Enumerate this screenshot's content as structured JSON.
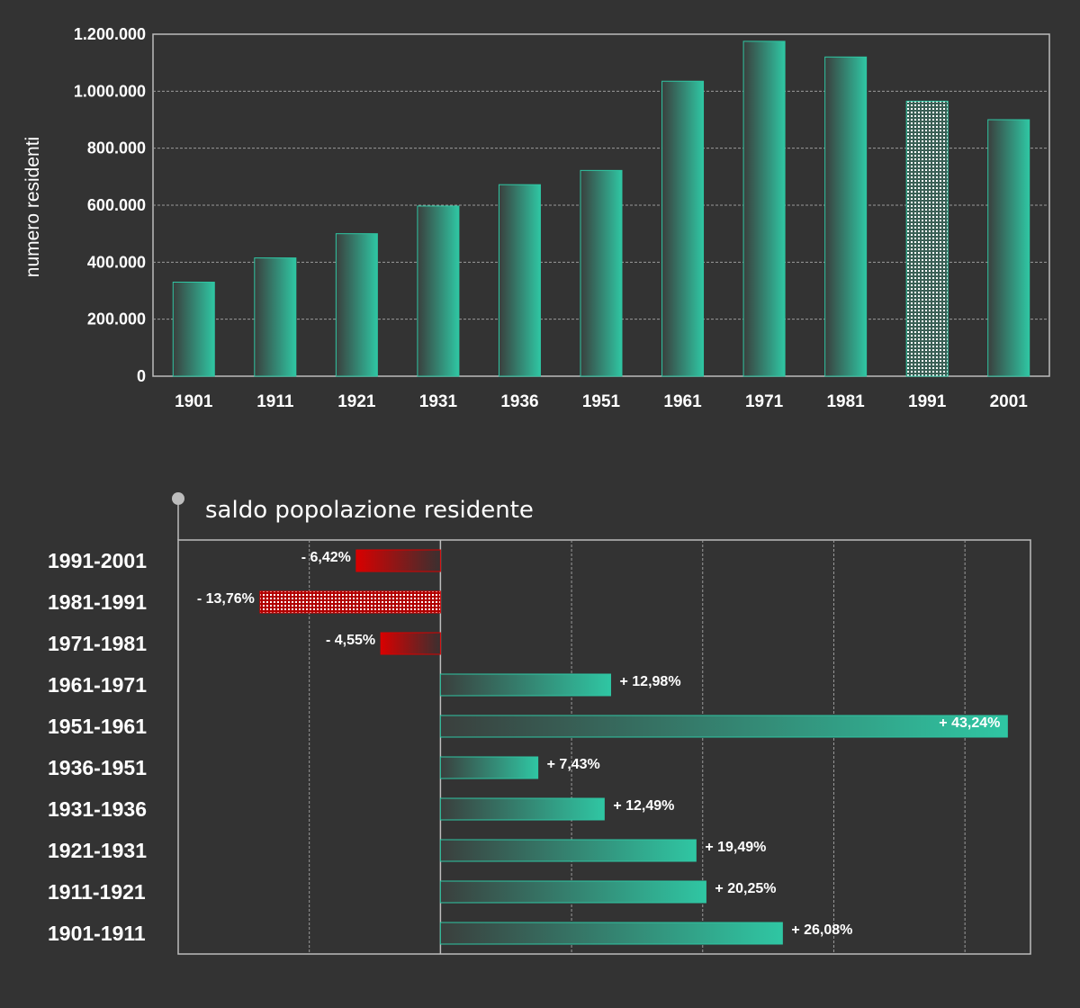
{
  "chart_data": [
    {
      "type": "bar",
      "title": "",
      "xlabel": "",
      "ylabel": "numero residenti",
      "categories": [
        "1901",
        "1911",
        "1921",
        "1931",
        "1936",
        "1951",
        "1961",
        "1971",
        "1981",
        "1991",
        "2001"
      ],
      "values": [
        330000,
        415000,
        500000,
        597000,
        672000,
        722000,
        1035000,
        1175000,
        1120000,
        965000,
        900000
      ],
      "highlighted_category": "1991",
      "ylim": [
        0,
        1200000
      ],
      "yticks": [
        0,
        200000,
        400000,
        600000,
        800000,
        1000000,
        1200000
      ],
      "ytick_labels": [
        "0",
        "200.000",
        "400.000",
        "600.000",
        "800.000",
        "1.000.000",
        "1.200.000"
      ],
      "grid": true,
      "bar_color": "#2fc6a3"
    },
    {
      "type": "bar",
      "orientation": "horizontal",
      "title": "saldo popolazione residente",
      "xlabel": "",
      "ylabel": "",
      "categories": [
        "1991-2001",
        "1981-1991",
        "1971-1981",
        "1961-1971",
        "1951-1961",
        "1936-1951",
        "1931-1936",
        "1921-1931",
        "1911-1921",
        "1901-1911"
      ],
      "values": [
        -6.42,
        -13.76,
        -4.55,
        12.98,
        43.24,
        7.43,
        12.49,
        19.49,
        20.25,
        26.08
      ],
      "value_labels": [
        "- 6,42%",
        "- 13,76%",
        "- 4,55%",
        "+ 12,98%",
        "+ 43,24%",
        "+ 7,43%",
        "+ 12,49%",
        "+ 19,49%",
        "+ 20,25%",
        "+ 26,08%"
      ],
      "highlighted_category": "1981-1991",
      "xlim": [
        -20,
        45
      ],
      "grid": true,
      "positive_color": "#2fc6a3",
      "negative_color": "#d80000"
    }
  ]
}
